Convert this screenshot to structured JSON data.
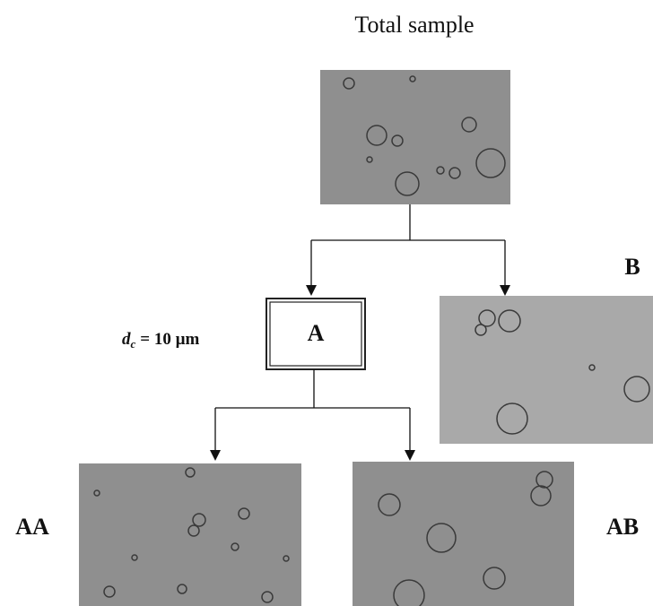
{
  "title": "Total sample",
  "nodes": [
    {
      "label": "A"
    },
    {
      "label": "B"
    },
    {
      "label": "AA"
    },
    {
      "label": "AB"
    }
  ],
  "cutoff": {
    "symbol": "d",
    "subscript": "c",
    "text": "= 10 µm"
  }
}
